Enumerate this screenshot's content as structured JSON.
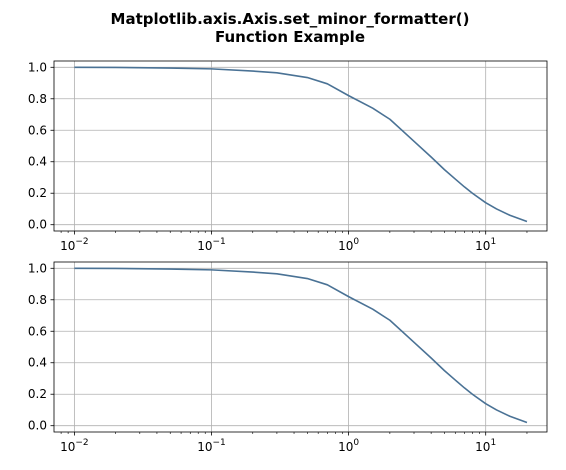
{
  "chart_data": {
    "title": "Matplotlib.axis.Axis.set_minor_formatter()\nFunction Example",
    "subplots": [
      {
        "type": "line",
        "xscale": "log",
        "xlim": [
          0.0071,
          28.0
        ],
        "ylim": [
          -0.04,
          1.04
        ],
        "grid": true,
        "line_color": "#4a7295",
        "x_tick_labels": [
          "10^-2",
          "10^-1",
          "10^0",
          "10^1"
        ],
        "x_tick_values": [
          0.01,
          0.1,
          1,
          10
        ],
        "y_tick_labels": [
          "0.0",
          "0.2",
          "0.4",
          "0.6",
          "0.8",
          "1.0"
        ],
        "y_tick_values": [
          0,
          0.2,
          0.4,
          0.6,
          0.8,
          1.0
        ],
        "series": [
          {
            "x": [
              0.01,
              0.02,
              0.05,
              0.1,
              0.2,
              0.3,
              0.5,
              0.7,
              1.0,
              1.5,
              2.0,
              3.0,
              4.0,
              5.0,
              6.0,
              7.0,
              8.0,
              10.0,
              12.0,
              15.0,
              20.0
            ],
            "y": [
              1.0,
              0.999,
              0.995,
              0.99,
              0.976,
              0.965,
              0.935,
              0.895,
              0.82,
              0.74,
              0.67,
              0.53,
              0.43,
              0.35,
              0.29,
              0.24,
              0.2,
              0.14,
              0.1,
              0.06,
              0.02
            ]
          }
        ]
      },
      {
        "type": "line",
        "xscale": "log",
        "xlim": [
          0.0071,
          28.0
        ],
        "ylim": [
          -0.04,
          1.04
        ],
        "grid": true,
        "line_color": "#4a7295",
        "x_tick_labels": [
          "10^-2",
          "10^-1",
          "10^0",
          "10^1"
        ],
        "x_tick_values": [
          0.01,
          0.1,
          1,
          10
        ],
        "y_tick_labels": [
          "0.0",
          "0.2",
          "0.4",
          "0.6",
          "0.8",
          "1.0"
        ],
        "y_tick_values": [
          0,
          0.2,
          0.4,
          0.6,
          0.8,
          1.0
        ],
        "series": [
          {
            "x": [
              0.01,
              0.02,
              0.05,
              0.1,
              0.2,
              0.3,
              0.5,
              0.7,
              1.0,
              1.5,
              2.0,
              3.0,
              4.0,
              5.0,
              6.0,
              7.0,
              8.0,
              10.0,
              12.0,
              15.0,
              20.0
            ],
            "y": [
              1.0,
              0.999,
              0.995,
              0.99,
              0.976,
              0.965,
              0.935,
              0.895,
              0.82,
              0.74,
              0.67,
              0.53,
              0.43,
              0.35,
              0.29,
              0.24,
              0.2,
              0.14,
              0.1,
              0.06,
              0.02
            ]
          }
        ]
      }
    ]
  }
}
